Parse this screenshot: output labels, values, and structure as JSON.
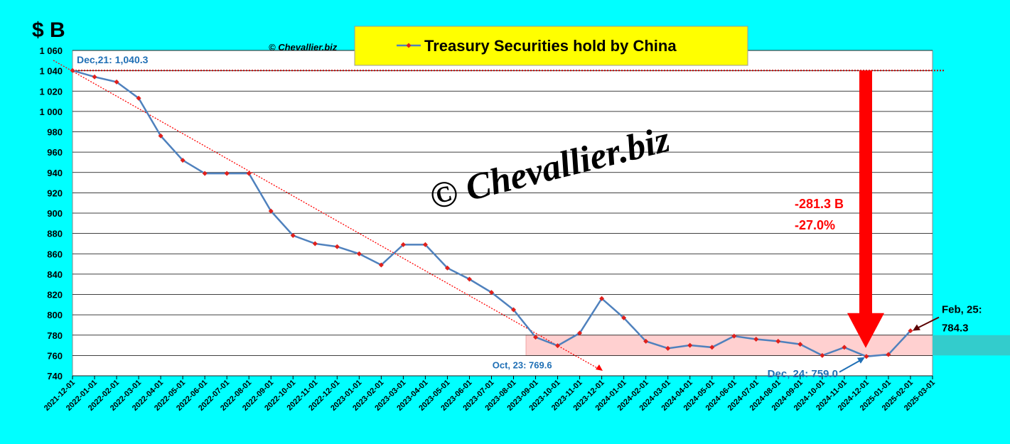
{
  "chart_data": {
    "type": "line",
    "title": "Treasury Securities hold by China",
    "y_unit_label": "$ B",
    "copyright": "© Chevallier.biz",
    "watermark": "© Chevallier.biz",
    "categories": [
      "2021-12-01",
      "2022-01-01",
      "2022-02-01",
      "2022-03-01",
      "2022-04-01",
      "2022-05-01",
      "2022-06-01",
      "2022-07-01",
      "2022-08-01",
      "2022-09-01",
      "2022-10-01",
      "2022-11-01",
      "2022-12-01",
      "2023-01-01",
      "2023-02-01",
      "2023-03-01",
      "2023-04-01",
      "2023-05-01",
      "2023-06-01",
      "2023-07-01",
      "2023-08-01",
      "2023-09-01",
      "2023-10-01",
      "2023-11-01",
      "2023-12-01",
      "2024-01-01",
      "2024-02-01",
      "2024-03-01",
      "2024-04-01",
      "2024-05-01",
      "2024-06-01",
      "2024-07-01",
      "2024-08-01",
      "2024-09-01",
      "2024-10-01",
      "2024-11-01",
      "2024-12-01",
      "2025-01-01",
      "2025-02-01",
      "2025-03-01"
    ],
    "series": [
      {
        "name": "Treasury Securities hold by China",
        "color": "#4f81bd",
        "marker_color": "#e0201c",
        "values": [
          1040.3,
          1034,
          1029,
          1013,
          976,
          952,
          939,
          939,
          939,
          902,
          878,
          870,
          867,
          860,
          849,
          869,
          869,
          846,
          835,
          822,
          805,
          778,
          769.6,
          782,
          816,
          797,
          774,
          767,
          770,
          768,
          779,
          776,
          774,
          771,
          760,
          768,
          759.0,
          761,
          784.3,
          null
        ]
      }
    ],
    "ylim": [
      740,
      1060
    ],
    "yticks": [
      740,
      760,
      780,
      800,
      820,
      840,
      860,
      880,
      900,
      920,
      940,
      960,
      980,
      {
        "value": 1000,
        "label": "1 000"
      },
      {
        "value": 1020,
        "label": "1 020"
      },
      {
        "value": 1040,
        "label": "1 040"
      },
      {
        "value": 1060,
        "label": "1 060"
      }
    ],
    "grid": true,
    "highlight_range": [
      760,
      780
    ],
    "annotations": [
      {
        "index": 0,
        "text": "Dec,21: 1,040.3"
      },
      {
        "index": 22,
        "text": "Oct, 23: 769.6"
      },
      {
        "index": 36,
        "text": "Dec, 24: 759.0"
      },
      {
        "index": 38,
        "text": [
          "Feb, 25:",
          "784.3"
        ]
      }
    ],
    "change_labels": [
      "-281.3 B",
      "-27.0%"
    ]
  }
}
